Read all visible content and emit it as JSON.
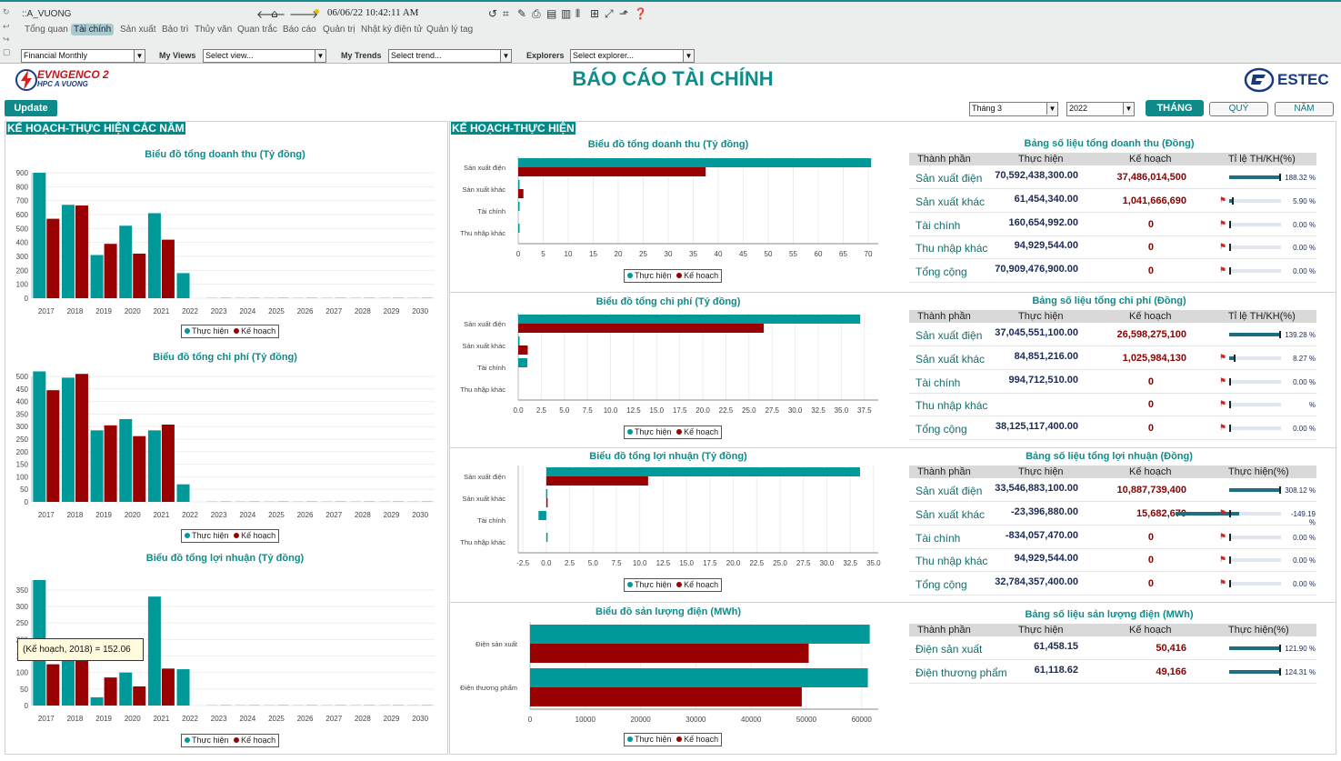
{
  "topbar": {
    "path": "::A_VUONG",
    "datetime": "06/06/22 10:42:11 AM",
    "tabs": [
      "Tổng quan",
      "Tài chính",
      "Sản xuất",
      "Bảo trì",
      "Thủy văn",
      "Quan trắc",
      "Báo cáo",
      "Quản trị",
      "Nhật ký điện tử",
      "Quản lý tag"
    ],
    "active_tab": "Tài chính",
    "report_select": "Financial Monthly",
    "my_views_label": "My Views",
    "my_views_value": "Select view...",
    "my_trends_label": "My Trends",
    "my_trends_value": "Select trend...",
    "explorers_label": "Explorers",
    "explorers_value": "Select explorer..."
  },
  "header": {
    "logo_line1": "EVNGENCO 2",
    "logo_line2": "HPC A VUONG",
    "title": "BÁO CÁO TÀI CHÍNH",
    "brand": "ESTEC",
    "update_button": "Update",
    "month_select": "Tháng 3",
    "year_select": "2022",
    "buttons": [
      "THÁNG",
      "QUÝ",
      "NĂM"
    ],
    "accent_color": "#009090",
    "series_colors": {
      "actual": "#009999",
      "plan": "#990000"
    }
  },
  "left_section": {
    "title": "KẾ HOẠCH-THỰC HIỆN CÁC NĂM",
    "legend_actual": "Thực hiện",
    "legend_plan": "Kế hoạch",
    "tooltip": "(Kế hoạch, 2018) = 152.06"
  },
  "right_section": {
    "title": "KẾ HOẠCH-THỰC HIỆN",
    "legend_actual": "Thực hiện",
    "legend_plan": "Kế hoạch"
  },
  "tables": [
    {
      "title": "Bảng số liệu tổng doanh thu (Đồng)",
      "headers": [
        "Thành phần",
        "Thực hiện",
        "Kế hoạch",
        "Tỉ lệ TH/KH(%)"
      ],
      "rows": [
        {
          "name": "Sản xuất điện",
          "actual": "70,592,438,300.00",
          "plan": "37,486,014,500",
          "pct": "188.32 %",
          "ratio": 1.0
        },
        {
          "name": "Sản xuất khác",
          "actual": "61,454,340.00",
          "plan": "1,041,666,690",
          "pct": "5.90 %",
          "ratio": 0.059
        },
        {
          "name": "Tài chính",
          "actual": "160,654,992.00",
          "plan": "0",
          "pct": "0.00 %",
          "ratio": 0
        },
        {
          "name": "Thu nhập khác",
          "actual": "94,929,544.00",
          "plan": "0",
          "pct": "0.00 %",
          "ratio": 0
        },
        {
          "name": "Tổng cộng",
          "actual": "70,909,476,900.00",
          "plan": "0",
          "pct": "0.00 %",
          "ratio": 0
        }
      ]
    },
    {
      "title": "Bảng số liệu tổng chi phí (Đồng)",
      "headers": [
        "Thành phần",
        "Thực hiện",
        "Kế hoạch",
        "Tỉ lệ TH/KH(%)"
      ],
      "rows": [
        {
          "name": "Sản xuất điện",
          "actual": "37,045,551,100.00",
          "plan": "26,598,275,100",
          "pct": "139.28 %",
          "ratio": 1.0
        },
        {
          "name": "Sản xuất khác",
          "actual": "84,851,216.00",
          "plan": "1,025,984,130",
          "pct": "8.27 %",
          "ratio": 0.083
        },
        {
          "name": "Tài chính",
          "actual": "994,712,510.00",
          "plan": "0",
          "pct": "0.00 %",
          "ratio": 0
        },
        {
          "name": "Thu nhập khác",
          "actual": "",
          "plan": "0",
          "pct": "%",
          "ratio": 0
        },
        {
          "name": "Tổng cộng",
          "actual": "38,125,117,400.00",
          "plan": "0",
          "pct": "0.00 %",
          "ratio": 0
        }
      ]
    },
    {
      "title": "Bảng số liệu tổng lợi nhuận (Đồng)",
      "headers": [
        "Thành phần",
        "Thực hiện",
        "Kế hoạch",
        "Thực hiện(%)"
      ],
      "rows": [
        {
          "name": "Sản xuất điện",
          "actual": "33,546,883,100.00",
          "plan": "10,887,739,400",
          "pct": "308.12 %",
          "ratio": 1.0
        },
        {
          "name": "Sản xuất khác",
          "actual": "-23,396,880.00",
          "plan": "15,682,670",
          "pct": "-149.19 %",
          "ratio": -1.0
        },
        {
          "name": "Tài chính",
          "actual": "-834,057,470.00",
          "plan": "0",
          "pct": "0.00 %",
          "ratio": 0
        },
        {
          "name": "Thu nhập khác",
          "actual": "94,929,544.00",
          "plan": "0",
          "pct": "0.00 %",
          "ratio": 0
        },
        {
          "name": "Tổng cộng",
          "actual": "32,784,357,400.00",
          "plan": "0",
          "pct": "0.00 %",
          "ratio": 0
        }
      ]
    },
    {
      "title": "Bảng số liệu sản lượng điện (MWh)",
      "headers": [
        "Thành phần",
        "Thực hiện",
        "Kế hoạch",
        "Thực hiện(%)"
      ],
      "rows": [
        {
          "name": "Điện sản xuất",
          "actual": "61,458.15",
          "plan": "50,416",
          "pct": "121.90 %",
          "ratio": 1.0
        },
        {
          "name": "Điện thương phẩm",
          "actual": "61,118.62",
          "plan": "49,166",
          "pct": "124.31 %",
          "ratio": 1.0
        }
      ]
    }
  ],
  "chart_data": [
    {
      "type": "bar",
      "title": "Biểu đồ tổng doanh thu (Tỷ đồng)",
      "categories": [
        "2017",
        "2018",
        "2019",
        "2020",
        "2021",
        "2022",
        "2023",
        "2024",
        "2025",
        "2026",
        "2027",
        "2028",
        "2029",
        "2030"
      ],
      "series": [
        {
          "name": "Thực hiện",
          "values": [
            900,
            670,
            310,
            520,
            610,
            180,
            0,
            0,
            0,
            0,
            0,
            0,
            0,
            0
          ]
        },
        {
          "name": "Kế hoạch",
          "values": [
            570,
            665,
            390,
            320,
            420,
            0,
            0,
            0,
            0,
            0,
            0,
            0,
            0,
            0
          ]
        }
      ],
      "ylim": [
        0,
        900
      ],
      "yticks": [
        0,
        100,
        200,
        300,
        400,
        500,
        600,
        700,
        800,
        900
      ]
    },
    {
      "type": "bar",
      "title": "Biểu đồ tổng chi phí (Tỷ đồng)",
      "categories": [
        "2017",
        "2018",
        "2019",
        "2020",
        "2021",
        "2022",
        "2023",
        "2024",
        "2025",
        "2026",
        "2027",
        "2028",
        "2029",
        "2030"
      ],
      "series": [
        {
          "name": "Thực hiện",
          "values": [
            520,
            495,
            285,
            330,
            285,
            70,
            0,
            0,
            0,
            0,
            0,
            0,
            0,
            0
          ]
        },
        {
          "name": "Kế hoạch",
          "values": [
            445,
            510,
            305,
            262,
            308,
            0,
            0,
            0,
            0,
            0,
            0,
            0,
            0,
            0
          ]
        }
      ],
      "ylim": [
        0,
        500
      ],
      "yticks": [
        0,
        50,
        100,
        150,
        200,
        250,
        300,
        350,
        400,
        450,
        500
      ]
    },
    {
      "type": "bar",
      "title": "Biểu đồ tổng lợi nhuận (Tỷ đồng)",
      "categories": [
        "2017",
        "2018",
        "2019",
        "2020",
        "2021",
        "2022",
        "2023",
        "2024",
        "2025",
        "2026",
        "2027",
        "2028",
        "2029",
        "2030"
      ],
      "series": [
        {
          "name": "Thực hiện",
          "values": [
            380,
            175,
            25,
            100,
            330,
            110,
            0,
            0,
            0,
            0,
            0,
            0,
            0,
            0
          ]
        },
        {
          "name": "Kế hoạch",
          "values": [
            125,
            152.06,
            85,
            58,
            112,
            0,
            0,
            0,
            0,
            0,
            0,
            0,
            0,
            0
          ]
        }
      ],
      "ylim": [
        0,
        380
      ],
      "yticks": [
        0,
        50,
        100,
        150,
        200,
        250,
        300,
        350
      ]
    },
    {
      "type": "bar",
      "orientation": "horizontal",
      "title": "Biểu đồ tổng doanh thu (Tỷ đồng)",
      "categories": [
        "Sản xuất điện",
        "Sản xuất khác",
        "Tài chính",
        "Thu nhập khác"
      ],
      "series": [
        {
          "name": "Thực hiện",
          "values": [
            70.59,
            0.06,
            0.16,
            0.09
          ]
        },
        {
          "name": "Kế hoạch",
          "values": [
            37.49,
            1.04,
            0,
            0
          ]
        }
      ],
      "xlim": [
        0,
        72
      ],
      "xticks": [
        0,
        5,
        10,
        15,
        20,
        25,
        30,
        35,
        40,
        45,
        50,
        55,
        60,
        65,
        70
      ],
      "xtick_labels": [
        "0",
        "5",
        "10",
        "15",
        "20",
        "25",
        "30",
        "35",
        "40",
        "45",
        "50",
        "55",
        "60",
        "65",
        "70"
      ]
    },
    {
      "type": "bar",
      "orientation": "horizontal",
      "title": "Biểu đồ tổng chi phí (Tỷ đồng)",
      "categories": [
        "Sản xuất điện",
        "Sản xuất khác",
        "Tài chính",
        "Thu nhập khác"
      ],
      "series": [
        {
          "name": "Thực hiện",
          "values": [
            37.05,
            0.08,
            0.99,
            0
          ]
        },
        {
          "name": "Kế hoạch",
          "values": [
            26.6,
            1.03,
            0,
            0
          ]
        }
      ],
      "xlim": [
        0,
        39
      ],
      "xticks": [
        0,
        2.5,
        5,
        7.5,
        10,
        12.5,
        15,
        17.5,
        20,
        22.5,
        25,
        27.5,
        30,
        32.5,
        35,
        37.5
      ],
      "xtick_labels": [
        "0.0",
        "2.5",
        "5.0",
        "7.5",
        "10.0",
        "12.5",
        "15.0",
        "17.5",
        "20.0",
        "22.5",
        "25.0",
        "27.5",
        "30.0",
        "32.5",
        "35.0",
        "37.5"
      ]
    },
    {
      "type": "bar",
      "orientation": "horizontal",
      "title": "Biểu đồ tổng lợi nhuận (Tỷ đồng)",
      "categories": [
        "Sản xuất điện",
        "Sản xuất khác",
        "Tài chính",
        "Thu nhập khác"
      ],
      "series": [
        {
          "name": "Thực hiện",
          "values": [
            33.55,
            -0.02,
            -0.83,
            0.09
          ]
        },
        {
          "name": "Kế hoạch",
          "values": [
            10.89,
            0.02,
            0,
            0
          ]
        }
      ],
      "xlim": [
        -3,
        35.5
      ],
      "xticks": [
        -2.5,
        0,
        2.5,
        5,
        7.5,
        10,
        12.5,
        15,
        17.5,
        20,
        22.5,
        25,
        27.5,
        30,
        32.5,
        35
      ],
      "xtick_labels": [
        "-2.5",
        "0.0",
        "2.5",
        "5.0",
        "7.5",
        "10.0",
        "12.5",
        "15.0",
        "17.5",
        "20.0",
        "22.5",
        "25.0",
        "27.5",
        "30.0",
        "32.5",
        "35.0"
      ]
    },
    {
      "type": "bar",
      "orientation": "horizontal",
      "title": "Biểu đồ sản lượng điện (MWh)",
      "categories": [
        "Điện sản xuất",
        "Điện thương phẩm"
      ],
      "series": [
        {
          "name": "Thực hiện",
          "values": [
            61458.15,
            61118.62
          ]
        },
        {
          "name": "Kế hoạch",
          "values": [
            50416,
            49166
          ]
        }
      ],
      "xlim": [
        0,
        63000
      ],
      "xticks": [
        0,
        10000,
        20000,
        30000,
        40000,
        50000,
        60000
      ],
      "xtick_labels": [
        "0",
        "10000",
        "20000",
        "30000",
        "40000",
        "50000",
        "60000"
      ]
    }
  ]
}
